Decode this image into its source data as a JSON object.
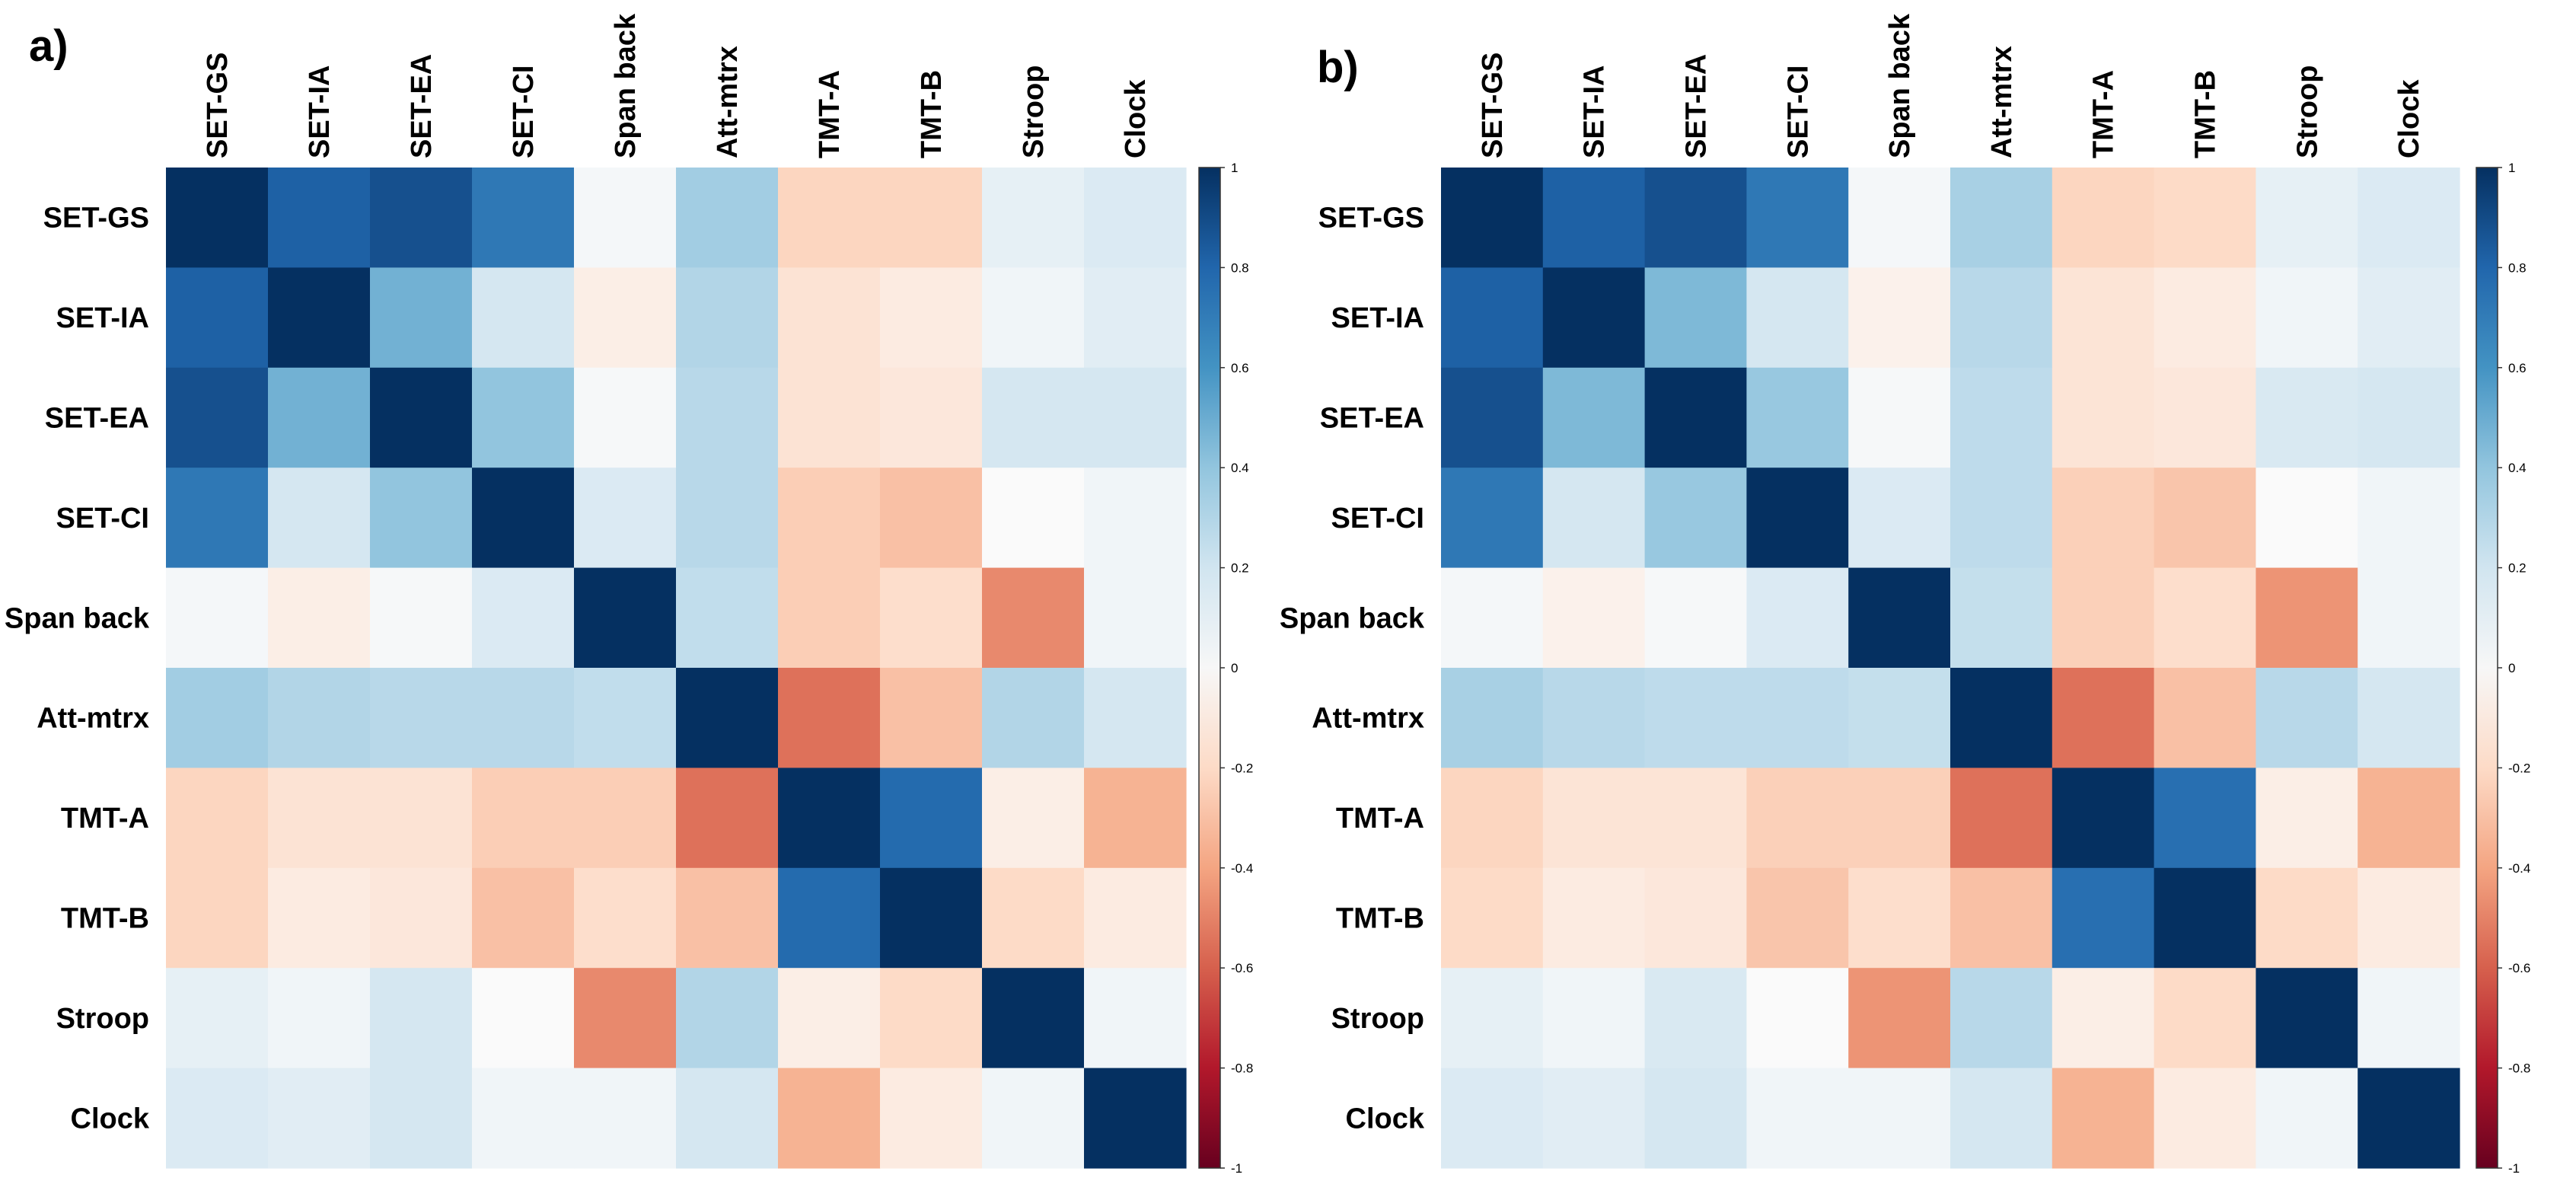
{
  "chart_data": [
    {
      "type": "heatmap",
      "panel_label": "a)",
      "x_labels": [
        "SET-GS",
        "SET-IA",
        "SET-EA",
        "SET-CI",
        "Span back",
        "Att-mtrx",
        "TMT-A",
        "TMT-B",
        "Stroop",
        "Clock"
      ],
      "y_labels": [
        "SET-GS",
        "SET-IA",
        "SET-EA",
        "SET-CI",
        "Span back",
        "Att-mtrx",
        "TMT-A",
        "TMT-B",
        "Stroop",
        "Clock"
      ],
      "values": [
        [
          1.0,
          0.82,
          0.88,
          0.72,
          0.03,
          0.35,
          -0.22,
          -0.22,
          0.1,
          0.15
        ],
        [
          0.82,
          1.0,
          0.48,
          0.18,
          -0.08,
          0.3,
          -0.15,
          -0.1,
          0.05,
          0.12
        ],
        [
          0.88,
          0.48,
          1.0,
          0.4,
          0.02,
          0.28,
          -0.15,
          -0.12,
          0.18,
          0.18
        ],
        [
          0.72,
          0.18,
          0.4,
          1.0,
          0.15,
          0.28,
          -0.25,
          -0.3,
          0.0,
          0.05
        ],
        [
          0.03,
          -0.08,
          0.02,
          0.15,
          1.0,
          0.25,
          -0.25,
          -0.18,
          -0.48,
          0.05
        ],
        [
          0.35,
          0.3,
          0.28,
          0.28,
          0.25,
          1.0,
          -0.55,
          -0.3,
          0.3,
          0.18
        ],
        [
          -0.22,
          -0.15,
          -0.15,
          -0.25,
          -0.25,
          -0.55,
          1.0,
          0.78,
          -0.08,
          -0.35
        ],
        [
          -0.22,
          -0.1,
          -0.12,
          -0.3,
          -0.18,
          -0.3,
          0.78,
          1.0,
          -0.2,
          -0.1
        ],
        [
          0.1,
          0.05,
          0.18,
          0.0,
          -0.48,
          0.3,
          -0.08,
          -0.2,
          1.0,
          0.05
        ],
        [
          0.15,
          0.12,
          0.18,
          0.05,
          0.05,
          0.18,
          -0.35,
          -0.1,
          0.05,
          1.0
        ]
      ]
    },
    {
      "type": "heatmap",
      "panel_label": "b)",
      "x_labels": [
        "SET-GS",
        "SET-IA",
        "SET-EA",
        "SET-CI",
        "Span back",
        "Att-mtrx",
        "TMT-A",
        "TMT-B",
        "Stroop",
        "Clock"
      ],
      "y_labels": [
        "SET-GS",
        "SET-IA",
        "SET-EA",
        "SET-CI",
        "Span back",
        "Att-mtrx",
        "TMT-A",
        "TMT-B",
        "Stroop",
        "Clock"
      ],
      "values": [
        [
          1.0,
          0.82,
          0.88,
          0.72,
          0.03,
          0.33,
          -0.22,
          -0.2,
          0.1,
          0.15
        ],
        [
          0.82,
          1.0,
          0.45,
          0.18,
          -0.06,
          0.28,
          -0.14,
          -0.1,
          0.05,
          0.12
        ],
        [
          0.88,
          0.45,
          1.0,
          0.38,
          0.02,
          0.26,
          -0.14,
          -0.12,
          0.16,
          0.18
        ],
        [
          0.72,
          0.18,
          0.38,
          1.0,
          0.15,
          0.26,
          -0.24,
          -0.28,
          0.0,
          0.05
        ],
        [
          0.03,
          -0.06,
          0.02,
          0.15,
          1.0,
          0.24,
          -0.24,
          -0.18,
          -0.45,
          0.05
        ],
        [
          0.33,
          0.28,
          0.26,
          0.26,
          0.24,
          1.0,
          -0.55,
          -0.3,
          0.28,
          0.18
        ],
        [
          -0.22,
          -0.14,
          -0.14,
          -0.24,
          -0.24,
          -0.55,
          1.0,
          0.76,
          -0.08,
          -0.35
        ],
        [
          -0.2,
          -0.1,
          -0.12,
          -0.28,
          -0.18,
          -0.3,
          0.76,
          1.0,
          -0.2,
          -0.1
        ],
        [
          0.1,
          0.05,
          0.16,
          0.0,
          -0.45,
          0.28,
          -0.08,
          -0.2,
          1.0,
          0.05
        ],
        [
          0.15,
          0.12,
          0.18,
          0.05,
          0.05,
          0.18,
          -0.35,
          -0.1,
          0.05,
          1.0
        ]
      ]
    }
  ],
  "colorbar": {
    "range": [
      -1,
      1
    ],
    "ticks": [
      "1",
      "0.8",
      "0.6",
      "0.4",
      "0.2",
      "0",
      "-0.2",
      "-0.4",
      "-0.6",
      "-0.8",
      "-1"
    ]
  }
}
